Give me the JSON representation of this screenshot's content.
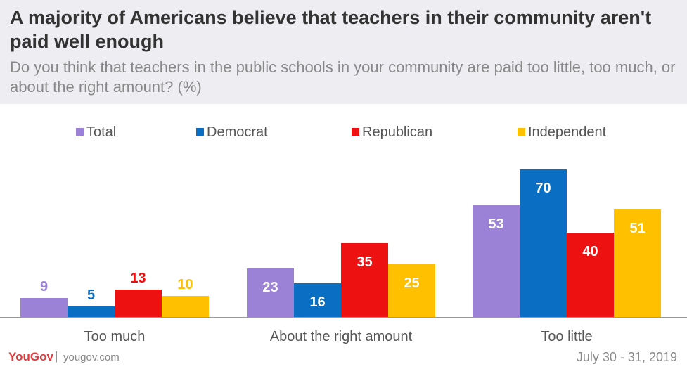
{
  "header": {
    "title": "A majority of Americans believe that teachers in their community aren't paid well enough",
    "subtitle": "Do you think that teachers in the public schools in your community are paid too little, too much, or about the right amount? (%)"
  },
  "footer": {
    "logo": "YouGov",
    "separator": "|",
    "site": "yougov.com",
    "date": "July 30 - 31, 2019"
  },
  "chart_data": {
    "type": "bar",
    "title": "A majority of Americans believe that teachers in their community aren't paid well enough",
    "subtitle": "Do you think that teachers in the public schools in your community are paid too little, too much, or about the right amount? (%)",
    "categories": [
      "Too much",
      "About the right amount",
      "Too little"
    ],
    "series": [
      {
        "name": "Total",
        "color": "#9b82d6",
        "values": [
          9,
          23,
          53
        ]
      },
      {
        "name": "Democrat",
        "color": "#0a6fc2",
        "values": [
          5,
          16,
          70
        ]
      },
      {
        "name": "Republican",
        "color": "#ee1111",
        "values": [
          13,
          35,
          40
        ]
      },
      {
        "name": "Independent",
        "color": "#ffc000",
        "values": [
          10,
          25,
          51
        ]
      }
    ],
    "ylim": [
      0,
      75
    ],
    "xlabel": "",
    "ylabel": "",
    "legend": "top",
    "grid": false
  }
}
